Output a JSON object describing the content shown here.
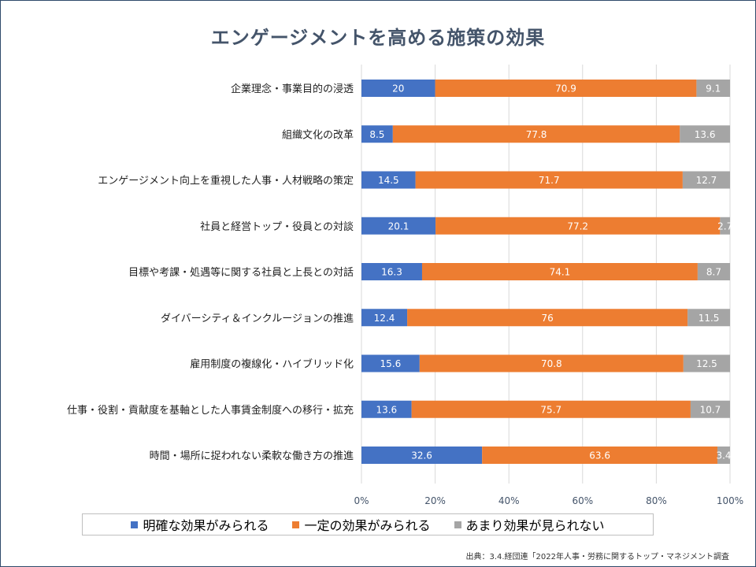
{
  "title": "エンゲージメントを高める施策の効果",
  "source": "出典：3.4.経団連「2022年人事・労務に関するトップ・マネジメント調査",
  "colors": {
    "series": [
      "#4472c4",
      "#ed7d31",
      "#a5a5a5"
    ],
    "title": "#44546a",
    "gridline": "#d9d9d9"
  },
  "legend": {
    "items": [
      {
        "marker": "■",
        "label": "明確な効果がみられる"
      },
      {
        "marker": "■",
        "label": "一定の効果がみられる"
      },
      {
        "marker": "■",
        "label": "あまり効果が見られない"
      }
    ],
    "position": "bottom"
  },
  "chart_data": {
    "type": "bar",
    "orientation": "horizontal",
    "stacked": "percent",
    "categories": [
      "企業理念・事業目的の浸透",
      "組織文化の改革",
      "エンゲージメント向上を重視した人事・人材戦略の策定",
      "社員と経営トップ・役員との対談",
      "目標や考課・処遇等に関する社員と上長との対話",
      "ダイバーシティ＆インクルージョンの推進",
      "雇用制度の複線化・ハイブリッド化",
      "仕事・役割・貢献度を基軸とした人事賃金制度への移行・拡充",
      "時間・場所に捉われない柔軟な働き方の推進"
    ],
    "series": [
      {
        "name": "明確な効果がみられる",
        "values": [
          20,
          8.5,
          14.5,
          20.1,
          16.3,
          12.4,
          15.6,
          13.6,
          32.6
        ]
      },
      {
        "name": "一定の効果がみられる",
        "values": [
          70.9,
          77.8,
          71.7,
          77.2,
          74.1,
          76,
          70.8,
          75.7,
          63.6
        ]
      },
      {
        "name": "あまり効果が見られない",
        "values": [
          9.1,
          13.6,
          12.7,
          2.7,
          8.7,
          11.5,
          12.5,
          10.7,
          3.4
        ]
      }
    ],
    "x_ticks": [
      "0%",
      "20%",
      "40%",
      "60%",
      "80%",
      "100%"
    ],
    "xlim": [
      0,
      100
    ],
    "grid": true
  }
}
